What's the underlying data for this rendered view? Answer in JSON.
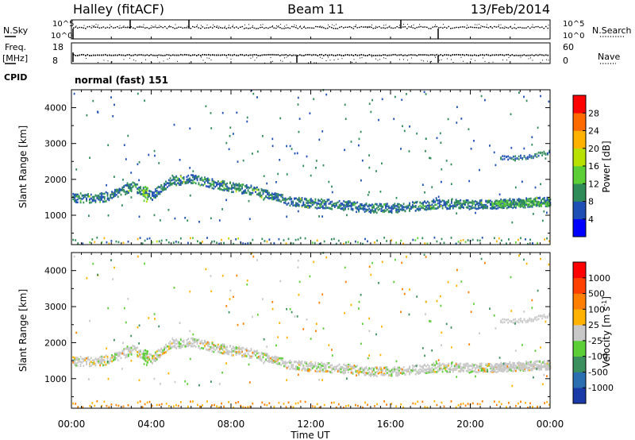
{
  "header": {
    "title": "Halley (fitACF)",
    "beam": "Beam 11",
    "date": "13/Feb/2014"
  },
  "status_panels": {
    "nsky_label": "N.Sky",
    "nsky_ticks": [
      "10^5",
      "10^0"
    ],
    "nsearch_label": "N.Search",
    "nsearch_ticks": [
      "10^5",
      "10^0"
    ],
    "freq_label_1": "Freq.",
    "freq_label_2": "[MHz]",
    "freq_ticks": [
      "18",
      "8"
    ],
    "nave_label": "Nave",
    "nave_ticks": [
      "60",
      "0"
    ],
    "cpid_label": "CPID",
    "cpid_value": "normal (fast) 151"
  },
  "chart_data": [
    {
      "type": "heatmap",
      "name": "power",
      "ylabel": "Slant Range [km]",
      "xlabel": "",
      "ylim": [
        180,
        4500
      ],
      "yticks": [
        "4000",
        "3000",
        "2000",
        "1000"
      ],
      "colorbar": {
        "label": "Power [dB]",
        "range": [
          0,
          32
        ],
        "ticks": [
          "28",
          "24",
          "20",
          "16",
          "12",
          "8",
          "4"
        ],
        "colors": [
          "#0000ff",
          "#1e4fb4",
          "#2f8b57",
          "#5ccf36",
          "#b8e000",
          "#ffb300",
          "#ff6a00",
          "#ff0000"
        ]
      },
      "echo_band_range_km": [
        [
          0,
          1500
        ],
        [
          1,
          1460
        ],
        [
          2,
          1540
        ],
        [
          3,
          1800
        ],
        [
          4,
          1550
        ],
        [
          5,
          1950
        ],
        [
          6,
          2020
        ],
        [
          7,
          1880
        ],
        [
          8,
          1780
        ],
        [
          9,
          1700
        ],
        [
          10,
          1550
        ],
        [
          11,
          1380
        ],
        [
          12,
          1330
        ],
        [
          13,
          1300
        ],
        [
          14,
          1260
        ],
        [
          15,
          1200
        ],
        [
          16,
          1190
        ],
        [
          17,
          1240
        ],
        [
          18,
          1300
        ],
        [
          19,
          1310
        ],
        [
          20,
          1290
        ],
        [
          21,
          1300
        ],
        [
          22,
          1330
        ],
        [
          23,
          1360
        ],
        [
          24,
          1380
        ]
      ],
      "upper_band_range_km": [
        [
          21.5,
          2600
        ],
        [
          22,
          2580
        ],
        [
          23,
          2640
        ],
        [
          24,
          2780
        ]
      ]
    },
    {
      "type": "heatmap",
      "name": "velocity",
      "ylabel": "Slant Range [km]",
      "xlabel": "Time UT",
      "ylim": [
        180,
        4500
      ],
      "yticks": [
        "4000",
        "3000",
        "2000",
        "1000"
      ],
      "colorbar": {
        "label": "Velocity [m s-1]",
        "range": [
          -1200,
          1200
        ],
        "ticks": [
          "1000",
          "500",
          "100",
          "25",
          "-25",
          "-100",
          "-500",
          "-1000"
        ],
        "colors": [
          "#1a3aa8",
          "#2b6fb0",
          "#3b8f5c",
          "#5ccf36",
          "#c8c8c8",
          "#ffb300",
          "#ff8000",
          "#ff4000",
          "#ff0000"
        ]
      },
      "x_ticks": [
        "00:00",
        "04:00",
        "08:00",
        "12:00",
        "16:00",
        "20:00",
        "00:00"
      ]
    }
  ]
}
